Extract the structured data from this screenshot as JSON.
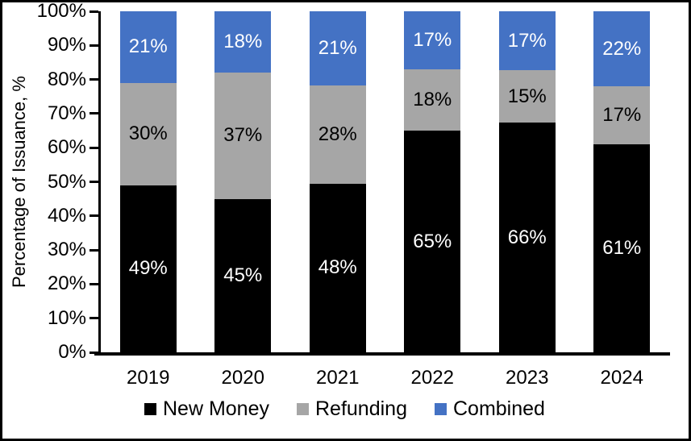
{
  "chart_data": {
    "type": "bar",
    "variant": "stacked-100-percent",
    "title": "",
    "xlabel": "",
    "ylabel": "Percentage of Issuance, %",
    "categories": [
      "2019",
      "2020",
      "2021",
      "2022",
      "2023",
      "2024"
    ],
    "series": [
      {
        "name": "New Money",
        "color": "#000000",
        "label_color": "#FFFFFF",
        "values": [
          49,
          45,
          48,
          65,
          66,
          61
        ]
      },
      {
        "name": "Refunding",
        "color": "#A6A6A6",
        "label_color": "#000000",
        "values": [
          30,
          37,
          28,
          18,
          15,
          17
        ]
      },
      {
        "name": "Combined",
        "color": "#4472C4",
        "label_color": "#FFFFFF",
        "values": [
          21,
          18,
          21,
          17,
          17,
          22
        ]
      }
    ],
    "data_label_suffix": "%",
    "y_ticks": [
      "0%",
      "10%",
      "20%",
      "30%",
      "40%",
      "50%",
      "60%",
      "70%",
      "80%",
      "90%",
      "100%"
    ],
    "ylim": [
      0,
      100
    ],
    "grid": false,
    "legend": {
      "position": "bottom",
      "items": [
        "New Money",
        "Refunding",
        "Combined"
      ]
    }
  },
  "frame": {
    "border_color": "#000000",
    "background": "#FFFFFF"
  }
}
